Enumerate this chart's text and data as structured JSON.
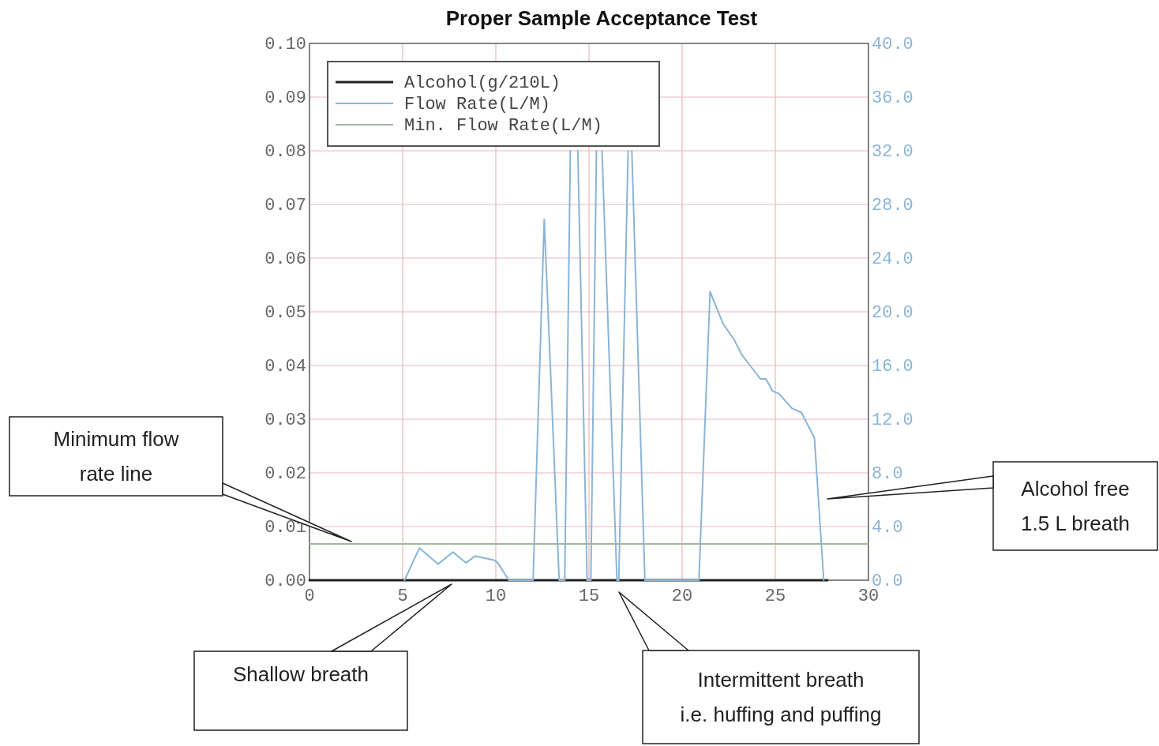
{
  "chart_data": {
    "type": "line",
    "title": "Proper Sample Acceptance Test",
    "xlim": [
      0,
      30
    ],
    "xticks": [
      0,
      5,
      10,
      15,
      20,
      25,
      30
    ],
    "ylim": [
      0,
      0.1
    ],
    "yticks": [
      {
        "value": 0,
        "label": "0.00"
      },
      {
        "value": 0.01,
        "label": "0.01"
      },
      {
        "value": 0.02,
        "label": "0.02"
      },
      {
        "value": 0.03,
        "label": "0.03"
      },
      {
        "value": 0.04,
        "label": "0.04"
      },
      {
        "value": 0.05,
        "label": "0.05"
      },
      {
        "value": 0.06,
        "label": "0.06"
      },
      {
        "value": 0.07,
        "label": "0.07"
      },
      {
        "value": 0.08,
        "label": "0.08"
      },
      {
        "value": 0.09,
        "label": "0.09"
      },
      {
        "value": 0.1,
        "label": "0.10"
      }
    ],
    "y2lim": [
      0,
      40
    ],
    "y2ticks": [
      {
        "value": 0,
        "label": "0.0"
      },
      {
        "value": 4,
        "label": "4.0"
      },
      {
        "value": 8,
        "label": "8.0"
      },
      {
        "value": 12,
        "label": "12.0"
      },
      {
        "value": 16,
        "label": "16.0"
      },
      {
        "value": 20,
        "label": "20.0"
      },
      {
        "value": 24,
        "label": "24.0"
      },
      {
        "value": 28,
        "label": "28.0"
      },
      {
        "value": 32,
        "label": "32.0"
      },
      {
        "value": 36,
        "label": "36.0"
      },
      {
        "value": 40,
        "label": "40.0"
      }
    ],
    "grid": true,
    "legend": "top left",
    "series": [
      {
        "name": "Alcohol(g/210L)",
        "color": "#222222",
        "x": [
          0,
          27.8
        ],
        "values": [
          0,
          0
        ]
      },
      {
        "name": "Flow Rate(L/M)",
        "color": "#8ab4d8",
        "axis": "y2",
        "x": [
          5.1,
          5.9,
          6.9,
          7.7,
          8.4,
          8.9,
          9.9,
          10.1,
          10.7,
          12.0,
          12.6,
          13.4,
          13.7,
          14.0,
          14.2,
          14.4,
          14.9,
          15.1,
          15.4,
          15.55,
          15.7,
          16.5,
          16.6,
          17.1,
          17.2,
          17.3,
          18.0,
          20.9,
          21.5,
          22.2,
          22.8,
          23.2,
          24.2,
          24.5,
          24.85,
          25.2,
          25.9,
          26.4,
          27.1,
          27.6
        ],
        "values": [
          0,
          2.4,
          1.2,
          2.1,
          1.3,
          1.8,
          1.5,
          1.3,
          0,
          0,
          26.9,
          0,
          0,
          32,
          null,
          32,
          0,
          0,
          32,
          null,
          32,
          0,
          0,
          32,
          null,
          32,
          0,
          0,
          21.5,
          19.1,
          17.9,
          16.8,
          15.0,
          15.0,
          14.1,
          13.9,
          12.8,
          12.5,
          10.6,
          0
        ]
      },
      {
        "name": "Min. Flow Rate(L/M)",
        "color": "#9fb89a",
        "axis": "y2",
        "x": [
          0,
          30
        ],
        "values": [
          2.7,
          2.7
        ]
      }
    ],
    "annotations": [
      "Minimum flow rate line",
      "Shallow breath",
      "Intermittent breath i.e. huffing and puffing",
      "Alcohol free 1.5 L breath"
    ]
  }
}
